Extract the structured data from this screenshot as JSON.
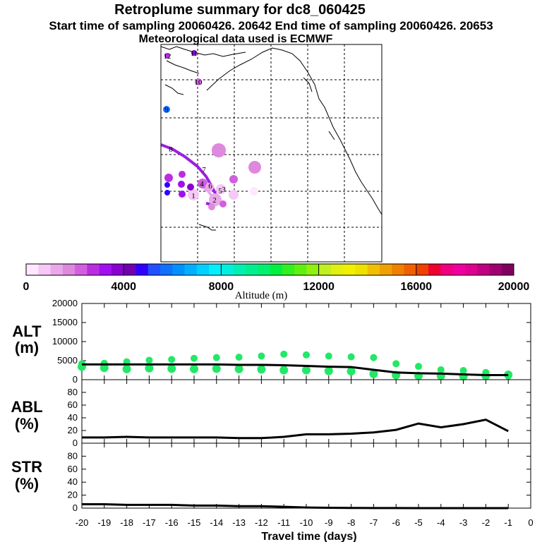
{
  "titles": {
    "line1": "Retroplume summary for dc8_060425",
    "line2": "Start time of sampling 20060426. 20642     End time of sampling 20060426. 20653",
    "line3": "Meteorological data used is ECMWF"
  },
  "colorbar": {
    "label": "Altitude (m)",
    "ticks": [
      "0",
      "4000",
      "8000",
      "12000",
      "16000",
      "20000"
    ],
    "colors": [
      "#ffe8ff",
      "#f5c8f5",
      "#eaa8ea",
      "#de88de",
      "#d060e0",
      "#bb2ee0",
      "#a010f0",
      "#8a00d0",
      "#7000b0",
      "#3000ff",
      "#2050ff",
      "#1070ff",
      "#0090ff",
      "#00b0ff",
      "#00d0ff",
      "#00f0ff",
      "#00f0e0",
      "#00f0b0",
      "#00f090",
      "#00f070",
      "#00f040",
      "#30f020",
      "#60f010",
      "#90f010",
      "#c0f020",
      "#e0f010",
      "#f0f000",
      "#f0e000",
      "#f0c000",
      "#f0a000",
      "#f08000",
      "#f06000",
      "#f04000",
      "#f00030",
      "#f00080",
      "#f000a0",
      "#e00090",
      "#c00080",
      "#a00070",
      "#800060"
    ]
  },
  "map": {
    "labels": [
      "12",
      "11",
      "10",
      "9",
      "8",
      "7",
      "6",
      "5",
      "4",
      "3",
      "2",
      "1"
    ]
  },
  "chart_data": [
    {
      "type": "scatter",
      "name": "ALT",
      "ylabel": "ALT (m)",
      "ylim": [
        0,
        20000
      ],
      "yticks": [
        "0",
        "5000",
        "10000",
        "15000",
        "20000"
      ],
      "x": [
        -20,
        -19,
        -18,
        -17,
        -16,
        -15,
        -14,
        -13,
        -12,
        -11,
        -10,
        -9,
        -8,
        -7,
        -6,
        -5,
        -4,
        -3,
        -2,
        -1
      ],
      "series": [
        {
          "name": "mean altitude",
          "values": [
            4000,
            4000,
            4000,
            4000,
            4000,
            4000,
            4000,
            3900,
            3900,
            3800,
            3600,
            3400,
            3300,
            2600,
            1900,
            1700,
            1600,
            1400,
            1200,
            1200
          ]
        },
        {
          "name": "cluster upper",
          "values": [
            4200,
            4300,
            4700,
            5100,
            5300,
            5600,
            5800,
            5900,
            6200,
            6700,
            6500,
            6200,
            6000,
            5800,
            4200,
            3500,
            2600,
            2400,
            1900,
            1300
          ]
        },
        {
          "name": "cluster lower",
          "values": [
            3400,
            3100,
            2800,
            3000,
            2900,
            2800,
            2900,
            2800,
            2700,
            2500,
            2500,
            2300,
            2200,
            1500,
            1200,
            1000,
            1000,
            900,
            1000,
            1300
          ]
        }
      ],
      "marker_color": "#22e866"
    },
    {
      "type": "line",
      "name": "ABL",
      "ylabel": "ABL (%)",
      "ylim": [
        0,
        100
      ],
      "yticks": [
        "0",
        "20",
        "40",
        "60",
        "80"
      ],
      "x": [
        -20,
        -19,
        -18,
        -17,
        -16,
        -15,
        -14,
        -13,
        -12,
        -11,
        -10,
        -9,
        -8,
        -7,
        -6,
        -5,
        -4,
        -3,
        -2,
        -1
      ],
      "values": [
        9,
        9,
        10,
        9,
        9,
        9,
        9,
        8,
        8,
        10,
        14,
        14,
        15,
        17,
        21,
        31,
        25,
        30,
        37,
        19
      ]
    },
    {
      "type": "line",
      "name": "STR",
      "ylabel": "STR (%)",
      "ylim": [
        0,
        100
      ],
      "yticks": [
        "0",
        "20",
        "40",
        "60",
        "80"
      ],
      "x": [
        -20,
        -19,
        -18,
        -17,
        -16,
        -15,
        -14,
        -13,
        -12,
        -11,
        -10,
        -9,
        -8,
        -7,
        -6,
        -5,
        -4,
        -3,
        -2,
        -1
      ],
      "values": [
        6,
        6,
        5,
        5,
        5,
        4,
        4,
        3,
        3,
        2,
        1,
        0.5,
        0.3,
        0.2,
        0.1,
        0,
        0,
        0,
        0,
        0
      ]
    }
  ],
  "xaxis": {
    "ticks": [
      "-20",
      "-19",
      "-18",
      "-17",
      "-16",
      "-15",
      "-14",
      "-13",
      "-12",
      "-11",
      "-10",
      "-9",
      "-8",
      "-7",
      "-6",
      "-5",
      "-4",
      "-3",
      "-2",
      "-1",
      "0"
    ],
    "label": "Travel time (days)"
  },
  "panel_labels": {
    "alt_top": "ALT",
    "alt_bottom": "(m)",
    "abl_top": "ABL",
    "abl_bottom": "(%)",
    "str_top": "STR",
    "str_bottom": "(%)"
  }
}
